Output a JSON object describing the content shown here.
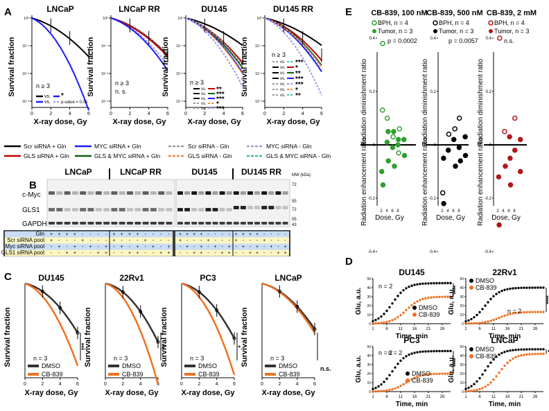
{
  "panel_letters": [
    "A",
    "B",
    "C",
    "D",
    "E"
  ],
  "panel_A": {
    "charts": [
      {
        "title": "LNCaP",
        "ylabel": "Survival fraction",
        "xlabel": "X-ray dose, Gy",
        "n_label": "n ≥ 3",
        "legend": [
          {
            "text": "vs.",
            "sig": "*"
          },
          {
            "text": "vs.",
            "sig": "p-value = 0.05"
          }
        ]
      },
      {
        "title": "LNCaP RR",
        "ylabel": "Survival fraction",
        "xlabel": "X-ray dose, Gy",
        "n_label": "n ≥ 3",
        "ns_label": "n. s."
      },
      {
        "title": "DU145",
        "ylabel": "Survival fraction",
        "xlabel": "X-ray dose, Gy",
        "n_label": "n ≥ 3",
        "legend": [
          {
            "text": "vs.",
            "sig": "**"
          },
          {
            "text": "vs.",
            "sig": "***"
          },
          {
            "text": "vs.",
            "sig": "***"
          },
          {
            "text": "vs.",
            "sig": "*"
          },
          {
            "text": "vs.",
            "sig": "***"
          }
        ]
      },
      {
        "title": "DU145 RR",
        "ylabel": "Survival fraction",
        "xlabel": "X-ray dose, Gy",
        "n_label": "n ≥ 3",
        "legend": [
          {
            "text": "vs.",
            "sig": "***"
          },
          {
            "text": "vs.",
            "sig": "*"
          },
          {
            "text": "vs.",
            "sig": "**"
          },
          {
            "text": "vs.",
            "sig": "***"
          },
          {
            "text": "vs.",
            "sig": "***"
          },
          {
            "text": "vs.",
            "sig": "*"
          },
          {
            "text": "vs.",
            "sig": "**"
          }
        ]
      }
    ],
    "x_ticks": [
      "0",
      "2",
      "4",
      "6"
    ],
    "y_ticks": [
      "10⁰",
      "10⁻¹",
      "10⁻²",
      "10⁻³"
    ],
    "legend": [
      {
        "label": "Scr siRNA + Gln",
        "color": "#000000",
        "dash": false
      },
      {
        "label": "MYC siRNA + Gln",
        "color": "#1a1aff",
        "dash": false
      },
      {
        "label": "Scr siRNA - Gln",
        "color": "#999999",
        "dash": true
      },
      {
        "label": "MYC siRNA - Gln",
        "color": "#9999ee",
        "dash": true
      },
      {
        "label": "GLS siRNA + Gln",
        "color": "#c00000",
        "dash": false
      },
      {
        "label": "GLS & MYC siRNA + Gln",
        "color": "#106010",
        "dash": false
      },
      {
        "label": "GLS siRNA - Gln",
        "color": "#f08a3c",
        "dash": true
      },
      {
        "label": "GLS & MYC siRNA - Gln",
        "color": "#3cc0a0",
        "dash": true
      }
    ]
  },
  "panel_B": {
    "groups": [
      "LNCaP",
      "LNCaP RR",
      "DU145",
      "DU145 RR"
    ],
    "bands": [
      "c-Myc",
      "GLS1",
      "GAPDH"
    ],
    "mw_title": "MW (kDa)",
    "mw": [
      "72",
      "55",
      "72",
      "55",
      "43"
    ],
    "rows": [
      {
        "label": "Gln",
        "values": [
          "+",
          "+",
          "+",
          "+",
          "-",
          "-",
          "-",
          "-",
          "+",
          "+",
          "+",
          "+",
          "-",
          "-",
          "-",
          "-",
          "+",
          "+",
          "+",
          "+",
          "-",
          "-",
          "-",
          "-",
          "+",
          "+",
          "+",
          "+",
          "-",
          "-",
          "-",
          "-"
        ]
      },
      {
        "label": "Scr siRNA pool",
        "values": [
          "+",
          "-",
          "-",
          "-",
          "+",
          "-",
          "-",
          "-",
          "+",
          "-",
          "-",
          "-",
          "+",
          "-",
          "-",
          "-",
          "+",
          "-",
          "-",
          "-",
          "+",
          "-",
          "-",
          "-",
          "+",
          "-",
          "-",
          "-",
          "+",
          "-",
          "-",
          "-"
        ]
      },
      {
        "label": "Myc siRNA pool",
        "values": [
          "-",
          "+",
          "-",
          "+",
          "-",
          "+",
          "-",
          "+",
          "-",
          "+",
          "-",
          "+",
          "-",
          "+",
          "-",
          "+",
          "-",
          "+",
          "-",
          "+",
          "-",
          "+",
          "-",
          "+",
          "-",
          "+",
          "-",
          "+",
          "-",
          "+",
          "-",
          "+"
        ]
      },
      {
        "label": "GLS1 siRNA pool",
        "values": [
          "-",
          "-",
          "+",
          "+",
          "-",
          "-",
          "+",
          "+",
          "-",
          "-",
          "+",
          "+",
          "-",
          "-",
          "+",
          "+",
          "-",
          "-",
          "+",
          "+",
          "-",
          "-",
          "+",
          "+",
          "-",
          "-",
          "+",
          "+",
          "-",
          "-",
          "+",
          "+"
        ]
      }
    ]
  },
  "panel_C": {
    "charts": [
      {
        "title": "DU145",
        "sig": "***"
      },
      {
        "title": "22Rv1",
        "sig": "**"
      },
      {
        "title": "PC3",
        "sig": "*"
      },
      {
        "title": "LNCaP",
        "sig": "n.s."
      }
    ],
    "ylabel": "Survival fraction",
    "xlabel": "X-ray dose, Gy",
    "n_label": "n = 3",
    "legend": [
      {
        "label": "DMSO",
        "color": "#333333"
      },
      {
        "label": "CB-839",
        "color": "#f07020"
      }
    ],
    "x_ticks": [
      "0",
      "2",
      "4",
      "6"
    ]
  },
  "panel_D": {
    "charts": [
      {
        "title": "DU145",
        "sig": "****"
      },
      {
        "title": "22Rv1",
        "sig": "****"
      },
      {
        "title": "PC3",
        "sig": "****"
      },
      {
        "title": "LNCaP",
        "sig": "*"
      }
    ],
    "ylabel": "Glu, a.u.",
    "xlabel": "Time, min",
    "n_label": "n = 2",
    "x_ticks": [
      "1",
      "6",
      "11",
      "16",
      "21",
      "26"
    ],
    "y_ticks": [
      "0",
      "10",
      "20",
      "30",
      "40",
      "50"
    ],
    "legend": [
      {
        "label": "DMSO",
        "color": "#000000"
      },
      {
        "label": "CB-839",
        "color": "#f07020"
      }
    ]
  },
  "panel_E": {
    "charts": [
      {
        "title": "CB-839, 100 nM",
        "bph": "BPH, n = 4",
        "tumor": "Tumor, n = 3",
        "p": "p = 0.0002",
        "color": "#2e9e2e"
      },
      {
        "title": "CB-839, 500 nM",
        "bph": "BPH, n = 4",
        "tumor": "Tumor, n = 3",
        "p": "p = 0.0057",
        "color": "#000000"
      },
      {
        "title": "CB-839, 2 mM",
        "bph": "BPH, n = 4",
        "tumor": "Tumor, n = 3",
        "p": "n.s.",
        "color": "#b01818"
      }
    ],
    "ylabel_top": "Radiation diminishment ratio",
    "ylabel_bottom": "Radiation enhancement ratio",
    "xlabel": "Dose, Gy",
    "x_ticks": [
      "2",
      "4",
      "6",
      "8"
    ],
    "y_ticks": [
      "0.4",
      "0.2",
      "0",
      "-0.2",
      "-0.4"
    ]
  }
}
